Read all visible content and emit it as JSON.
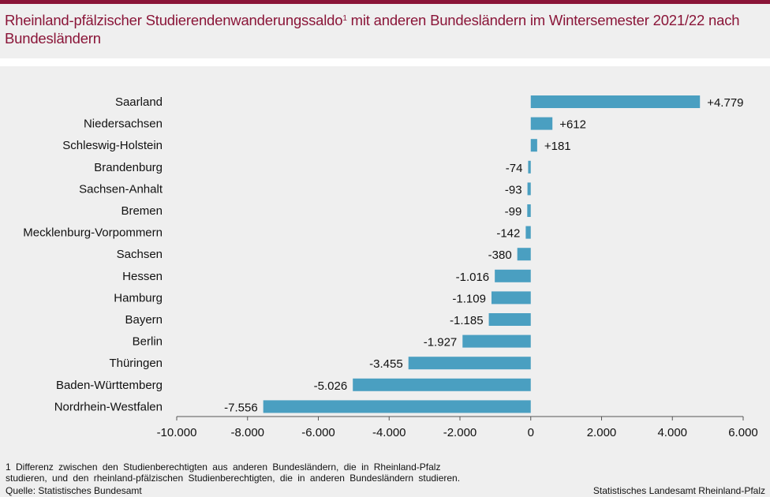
{
  "colors": {
    "accent": "#8a1538",
    "bar": "#4a9fc1"
  },
  "header": {
    "title": "Rheinland-pfälzischer Studierendenwanderungssaldo",
    "title_sup": "1",
    "title_rest": " mit anderen Bundesländern im Wintersemester 2021/22 nach Bundesländern"
  },
  "chart_data": {
    "type": "bar",
    "orientation": "horizontal",
    "categories": [
      "Saarland",
      "Niedersachsen",
      "Schleswig-Holstein",
      "Brandenburg",
      "Sachsen-Anhalt",
      "Bremen",
      "Mecklenburg-Vorpommern",
      "Sachsen",
      "Hessen",
      "Hamburg",
      "Bayern",
      "Berlin",
      "Thüringen",
      "Baden-Württemberg",
      "Nordrhein-Westfalen"
    ],
    "values": [
      4779,
      612,
      181,
      -74,
      -93,
      -99,
      -142,
      -380,
      -1016,
      -1109,
      -1185,
      -1927,
      -3455,
      -5026,
      -7556
    ],
    "value_labels": [
      "+4.779",
      "+612",
      "+181",
      "-74",
      "-93",
      "-99",
      "-142",
      "-380",
      "-1.016",
      "-1.109",
      "-1.185",
      "-1.927",
      "-3.455",
      "-5.026",
      "-7.556"
    ],
    "xlim": [
      -10000,
      6000
    ],
    "xticks": [
      -10000,
      -8000,
      -6000,
      -4000,
      -2000,
      0,
      2000,
      4000,
      6000
    ],
    "xtick_labels": [
      "-10.000",
      "-8.000",
      "-6.000",
      "-4.000",
      "-2.000",
      "0",
      "2.000",
      "4.000",
      "6.000"
    ],
    "grid": false
  },
  "footer": {
    "footnote_line1": "1 Differenz zwischen den Studienberechtigten aus anderen Bundesländern, die in Rheinland-Pfalz",
    "footnote_line2": "studieren, und den rheinland-pfälzischen Studienberechtigten, die in anderen Bundesländern studieren.",
    "source": "Quelle: Statistisches Bundesamt",
    "publisher": "Statistisches Landesamt Rheinland-Pfalz"
  }
}
